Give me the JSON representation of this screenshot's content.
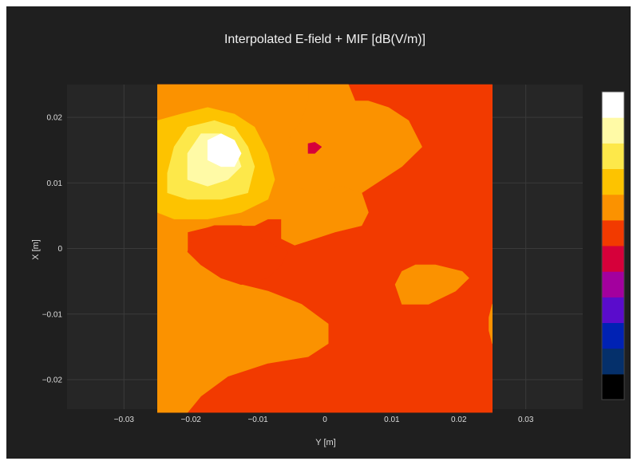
{
  "chart_data": {
    "type": "heatmap",
    "subtype": "filled-contour",
    "title": "Interpolated E-field + MIF [dB(V/m)]",
    "xlabel": "Y [m]",
    "ylabel": "X [m]",
    "xlim": [
      -0.0385,
      0.0385
    ],
    "ylim": [
      0.025,
      -0.0245
    ],
    "y_reversed": true,
    "data_extent": {
      "y_m": [
        -0.025,
        0.025
      ],
      "x_m": [
        -0.025,
        0.025
      ]
    },
    "x_ticks": [
      -0.03,
      -0.02,
      -0.01,
      0,
      0.01,
      0.02,
      0.03
    ],
    "x_tick_labels": [
      "−0.03",
      "−0.02",
      "−0.01",
      "0",
      "0.01",
      "0.02",
      "0.03"
    ],
    "y_ticks": [
      -0.02,
      -0.01,
      0,
      0.01,
      0.02
    ],
    "y_tick_labels": [
      "−0.02",
      "−0.01",
      "0",
      "0.01",
      "0.02"
    ],
    "grid": true,
    "background": "#1f1f1f",
    "plot_background": "#262626",
    "grid_color": "#3a3a3a",
    "colorscale": [
      "#000000",
      "#05306b",
      "#0022b4",
      "#5a0ccc",
      "#a3009e",
      "#d6003a",
      "#f23a00",
      "#fb9200",
      "#fdc300",
      "#fde84a",
      "#fffaa6",
      "#ffffff"
    ],
    "colorbar": {
      "show": true,
      "tick_labels": false
    },
    "regions": [
      {
        "level": 6,
        "color": "#f23a00",
        "label": "background field level",
        "points": [
          [
            -0.025,
            -0.025
          ],
          [
            0.025,
            -0.025
          ],
          [
            0.025,
            0.025
          ],
          [
            -0.025,
            0.025
          ]
        ]
      },
      {
        "level": 7,
        "color": "#fb9200",
        "label": "left orange band",
        "points": [
          [
            -0.025,
            -0.025
          ],
          [
            -0.0205,
            -0.025
          ],
          [
            -0.0185,
            -0.0225
          ],
          [
            -0.0145,
            -0.0195
          ],
          [
            -0.0085,
            -0.0175
          ],
          [
            -0.0025,
            -0.0165
          ],
          [
            0.0005,
            -0.0145
          ],
          [
            0.0005,
            -0.0115
          ],
          [
            -0.0035,
            -0.0085
          ],
          [
            -0.0085,
            -0.0065
          ],
          [
            -0.0125,
            -0.0055
          ],
          [
            -0.0155,
            -0.0045
          ],
          [
            -0.0185,
            -0.0025
          ],
          [
            -0.0205,
            -0.0005
          ],
          [
            -0.0205,
            0.0025
          ],
          [
            -0.0165,
            0.0035
          ],
          [
            -0.0105,
            0.0035
          ],
          [
            -0.0085,
            0.0045
          ],
          [
            -0.0065,
            0.0045
          ],
          [
            -0.0065,
            0.0015
          ],
          [
            -0.0045,
            0.0005
          ],
          [
            -0.0015,
            0.0015
          ],
          [
            0.0015,
            0.0025
          ],
          [
            0.0055,
            0.0035
          ],
          [
            0.0065,
            0.0055
          ],
          [
            0.0055,
            0.0085
          ],
          [
            0.0025,
            0.0095
          ],
          [
            -0.0015,
            0.0085
          ],
          [
            -0.0045,
            0.0095
          ],
          [
            -0.0045,
            0.0125
          ],
          [
            -0.0055,
            0.0165
          ],
          [
            -0.0035,
            0.0195
          ],
          [
            -0.0025,
            0.0225
          ],
          [
            -0.0025,
            0.025
          ],
          [
            -0.025,
            0.025
          ]
        ]
      },
      {
        "level": 6,
        "color": "#f23a00",
        "label": "red lobe",
        "points": [
          [
            -0.0205,
            -0.0005
          ],
          [
            -0.0185,
            -0.0025
          ],
          [
            -0.0155,
            -0.0045
          ],
          [
            -0.0125,
            -0.0055
          ],
          [
            -0.0085,
            -0.0045
          ],
          [
            -0.0065,
            -0.0025
          ],
          [
            -0.0055,
            -0.0005
          ],
          [
            -0.0075,
            0.0005
          ],
          [
            -0.0095,
            0.0015
          ],
          [
            -0.0095,
            0.0025
          ],
          [
            -0.0125,
            0.0035
          ],
          [
            -0.0165,
            0.0035
          ],
          [
            -0.0195,
            0.0025
          ]
        ]
      },
      {
        "level": 7,
        "color": "#fb9200",
        "label": "right orange island",
        "points": [
          [
            0.0115,
            -0.0085
          ],
          [
            0.0155,
            -0.0085
          ],
          [
            0.0195,
            -0.0065
          ],
          [
            0.0215,
            -0.0045
          ],
          [
            0.0205,
            -0.0035
          ],
          [
            0.0165,
            -0.0025
          ],
          [
            0.0135,
            -0.0025
          ],
          [
            0.0115,
            -0.0035
          ],
          [
            0.0105,
            -0.0055
          ]
        ]
      },
      {
        "level": 7,
        "color": "#fb9200",
        "label": "bottom right orange",
        "points": [
          [
            0.0055,
            0.0085
          ],
          [
            0.0085,
            0.0105
          ],
          [
            0.0115,
            0.0125
          ],
          [
            0.0145,
            0.0155
          ],
          [
            0.0125,
            0.0195
          ],
          [
            0.0095,
            0.0215
          ],
          [
            0.0065,
            0.0225
          ],
          [
            0.0045,
            0.0225
          ],
          [
            0.0035,
            0.025
          ],
          [
            -0.0025,
            0.025
          ],
          [
            -0.0025,
            0.0225
          ],
          [
            -0.0035,
            0.0195
          ],
          [
            -0.0055,
            0.0165
          ],
          [
            -0.0045,
            0.0125
          ],
          [
            -0.0045,
            0.0095
          ],
          [
            -0.0015,
            0.0085
          ],
          [
            0.0025,
            0.0095
          ]
        ]
      },
      {
        "level": 7,
        "color": "#fb9200",
        "label": "edge sliver",
        "points": [
          [
            0.025,
            -0.0145
          ],
          [
            0.0245,
            -0.0125
          ],
          [
            0.0245,
            -0.0105
          ],
          [
            0.025,
            -0.0085
          ]
        ]
      },
      {
        "level": 8,
        "color": "#fdc300",
        "label": "hotspot outer",
        "points": [
          [
            -0.025,
            0.0055
          ],
          [
            -0.0225,
            0.0045
          ],
          [
            -0.0175,
            0.0045
          ],
          [
            -0.0125,
            0.0055
          ],
          [
            -0.0085,
            0.0075
          ],
          [
            -0.0075,
            0.0105
          ],
          [
            -0.0085,
            0.0145
          ],
          [
            -0.0105,
            0.0185
          ],
          [
            -0.0135,
            0.0205
          ],
          [
            -0.0175,
            0.0215
          ],
          [
            -0.0215,
            0.0205
          ],
          [
            -0.025,
            0.0195
          ]
        ]
      },
      {
        "level": 9,
        "color": "#fde84a",
        "label": "hotspot middle",
        "points": [
          [
            -0.0235,
            0.0085
          ],
          [
            -0.0205,
            0.0075
          ],
          [
            -0.0155,
            0.0075
          ],
          [
            -0.0115,
            0.0085
          ],
          [
            -0.0105,
            0.0125
          ],
          [
            -0.0115,
            0.0155
          ],
          [
            -0.0135,
            0.0185
          ],
          [
            -0.0165,
            0.0195
          ],
          [
            -0.0205,
            0.0185
          ],
          [
            -0.0225,
            0.0155
          ],
          [
            -0.0235,
            0.0115
          ]
        ]
      },
      {
        "level": 10,
        "color": "#fffaa6",
        "label": "hotspot inner",
        "points": [
          [
            -0.0205,
            0.0105
          ],
          [
            -0.0175,
            0.0095
          ],
          [
            -0.0145,
            0.0105
          ],
          [
            -0.0125,
            0.0125
          ],
          [
            -0.0135,
            0.0155
          ],
          [
            -0.0155,
            0.0175
          ],
          [
            -0.0185,
            0.0175
          ],
          [
            -0.0205,
            0.0145
          ]
        ]
      },
      {
        "level": 11,
        "color": "#ffffff",
        "label": "hotspot peak",
        "points": [
          [
            -0.0175,
            0.0135
          ],
          [
            -0.0155,
            0.0125
          ],
          [
            -0.0135,
            0.0125
          ],
          [
            -0.0125,
            0.0145
          ],
          [
            -0.0135,
            0.0165
          ],
          [
            -0.0155,
            0.0175
          ],
          [
            -0.0175,
            0.0165
          ]
        ]
      },
      {
        "level": 5,
        "color": "#d6003a",
        "label": "small spot",
        "points": [
          [
            -0.0025,
            0.0145
          ],
          [
            -0.0015,
            0.0145
          ],
          [
            -0.0005,
            0.0155
          ],
          [
            -0.0015,
            0.0162
          ],
          [
            -0.0025,
            0.016
          ]
        ]
      }
    ]
  }
}
